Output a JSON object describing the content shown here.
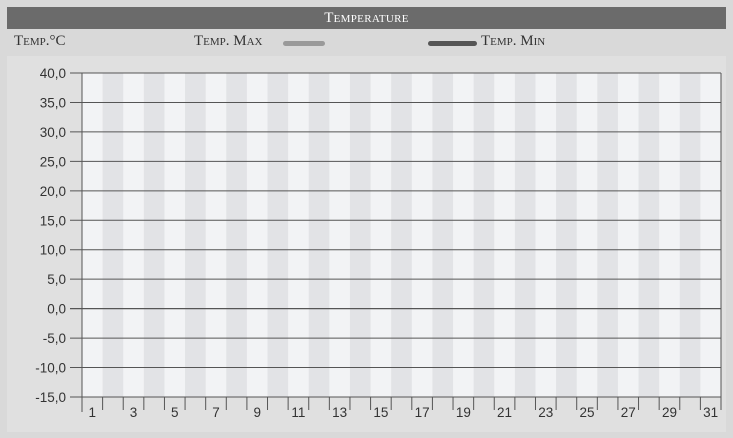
{
  "chart_data": {
    "type": "line",
    "title": "Temperature",
    "ylabel": "Temp.°C",
    "xlabel": "",
    "ylim": [
      -15,
      40
    ],
    "yticks": [
      "40,0",
      "35,0",
      "30,0",
      "25,0",
      "20,0",
      "15,0",
      "10,0",
      "5,0",
      "0,0",
      "-5,0",
      "-10,0",
      "-15,0"
    ],
    "xlim": [
      1,
      31
    ],
    "xticks": [
      "1",
      "3",
      "5",
      "7",
      "9",
      "11",
      "13",
      "15",
      "17",
      "19",
      "21",
      "23",
      "25",
      "27",
      "29",
      "31"
    ],
    "grid": true,
    "legend_position": "top",
    "series": [
      {
        "name": "Temp. Max",
        "color": "#9a9a9a",
        "values": []
      },
      {
        "name": "Temp. Min",
        "color": "#555555",
        "values": []
      }
    ],
    "colors": {
      "title_bar": "#6b6b6b",
      "panel_bg": "#d9d9d9",
      "stripe_light": "#f2f3f5",
      "stripe_dark": "#e2e3e6",
      "grid": "#555555"
    }
  }
}
